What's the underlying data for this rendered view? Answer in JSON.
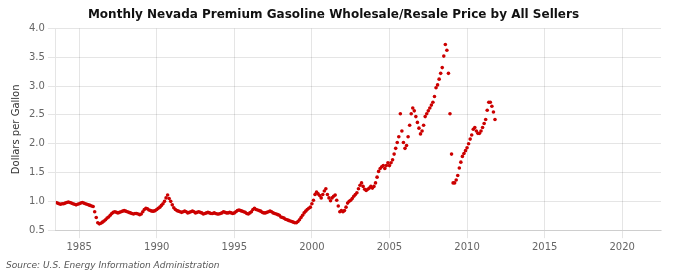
{
  "chart_data": {
    "type": "scatter",
    "title": "Monthly Nevada Premium Gasoline Wholesale/Resale Price by All Sellers",
    "ylabel": "Dollars per Gallon",
    "annotations": [
      "Source: U.S. Energy Information Administration"
    ],
    "color": "#cc0000",
    "grid": true,
    "xlim": [
      1983.5,
      2022.5
    ],
    "ylim": [
      0.5,
      4.0
    ],
    "xticks": [
      1985,
      1990,
      1995,
      2000,
      2005,
      2010,
      2015,
      2020
    ],
    "yticks": [
      0.5,
      {
        "value": 1.0,
        "label": "1.0"
      },
      1.5,
      {
        "value": 2.0,
        "label": "2.0"
      },
      2.5,
      {
        "value": 3.0,
        "label": "3.0"
      },
      3.5,
      {
        "value": 4.0,
        "label": "4.0"
      }
    ],
    "x": [
      1983.5,
      1983.6,
      1983.7,
      1983.8,
      1983.9,
      1984.0,
      1984.1,
      1984.2,
      1984.3,
      1984.4,
      1984.5,
      1984.6,
      1984.7,
      1984.8,
      1984.9,
      1985.0,
      1985.1,
      1985.2,
      1985.3,
      1985.4,
      1985.5,
      1985.6,
      1985.7,
      1985.8,
      1985.9,
      1986.0,
      1986.1,
      1986.2,
      1986.3,
      1986.4,
      1986.5,
      1986.6,
      1986.7,
      1986.8,
      1986.9,
      1987.0,
      1987.1,
      1987.2,
      1987.3,
      1987.4,
      1987.5,
      1987.6,
      1987.7,
      1987.8,
      1987.9,
      1988.0,
      1988.1,
      1988.2,
      1988.3,
      1988.4,
      1988.5,
      1988.6,
      1988.7,
      1988.8,
      1988.9,
      1989.0,
      1989.1,
      1989.2,
      1989.3,
      1989.4,
      1989.5,
      1989.6,
      1989.7,
      1989.8,
      1989.9,
      1990.0,
      1990.1,
      1990.2,
      1990.3,
      1990.4,
      1990.5,
      1990.6,
      1990.7,
      1990.8,
      1990.9,
      1991.0,
      1991.1,
      1991.2,
      1991.3,
      1991.4,
      1991.5,
      1991.6,
      1991.7,
      1991.8,
      1991.9,
      1992.0,
      1992.1,
      1992.2,
      1992.3,
      1992.4,
      1992.5,
      1992.6,
      1992.7,
      1992.8,
      1992.9,
      1993.0,
      1993.1,
      1993.2,
      1993.3,
      1993.4,
      1993.5,
      1993.6,
      1993.7,
      1993.8,
      1993.9,
      1994.0,
      1994.1,
      1994.2,
      1994.3,
      1994.4,
      1994.5,
      1994.6,
      1994.7,
      1994.8,
      1994.9,
      1995.0,
      1995.1,
      1995.2,
      1995.3,
      1995.4,
      1995.5,
      1995.6,
      1995.7,
      1995.8,
      1995.9,
      1996.0,
      1996.1,
      1996.2,
      1996.3,
      1996.4,
      1996.5,
      1996.6,
      1996.7,
      1996.8,
      1996.9,
      1997.0,
      1997.1,
      1997.2,
      1997.3,
      1997.4,
      1997.5,
      1997.6,
      1997.7,
      1997.8,
      1997.9,
      1998.0,
      1998.1,
      1998.2,
      1998.3,
      1998.4,
      1998.5,
      1998.6,
      1998.7,
      1998.8,
      1998.9,
      1999.0,
      1999.1,
      1999.2,
      1999.3,
      1999.4,
      1999.5,
      1999.6,
      1999.7,
      1999.8,
      1999.9,
      2000.0,
      2000.1,
      2000.2,
      2000.3,
      2000.4,
      2000.5,
      2000.6,
      2000.7,
      2000.8,
      2000.9,
      2001.0,
      2001.1,
      2001.2,
      2001.3,
      2001.4,
      2001.5,
      2001.6,
      2001.7,
      2001.8,
      2001.9,
      2002.0,
      2002.1,
      2002.2,
      2002.3,
      2002.4,
      2002.5,
      2002.6,
      2002.7,
      2002.8,
      2002.9,
      2003.0,
      2003.1,
      2003.2,
      2003.3,
      2003.4,
      2003.5,
      2003.6,
      2003.7,
      2003.8,
      2003.9,
      2004.0,
      2004.1,
      2004.2,
      2004.3,
      2004.4,
      2004.5,
      2004.6,
      2004.7,
      2004.8,
      2004.9,
      2005.0,
      2005.1,
      2005.2,
      2005.3,
      2005.4,
      2005.5,
      2005.6,
      2005.7,
      2005.8,
      2005.9,
      2006.0,
      2006.1,
      2006.2,
      2006.3,
      2006.4,
      2006.5,
      2006.6,
      2006.7,
      2006.8,
      2006.9,
      2007.0,
      2007.1,
      2007.2,
      2007.3,
      2007.4,
      2007.5,
      2007.6,
      2007.7,
      2007.8,
      2007.9,
      2008.0,
      2008.1,
      2008.2,
      2008.3,
      2008.4,
      2008.5,
      2008.6,
      2008.7,
      2008.8,
      2008.9,
      2009.0,
      2009.1,
      2009.2,
      2009.3,
      2009.4,
      2009.5,
      2009.6,
      2009.7,
      2009.8,
      2009.9,
      2010.0,
      2010.1,
      2010.2,
      2010.3,
      2010.4,
      2010.5,
      2010.6,
      2010.7,
      2010.8,
      2010.9,
      2011.0,
      2011.1,
      2011.2,
      2011.3,
      2011.4,
      2011.5,
      2011.6,
      2011.7,
      2011.8
    ],
    "values": [
      0.98,
      0.97,
      0.96,
      0.95,
      0.96,
      0.96,
      0.97,
      0.98,
      0.99,
      0.98,
      0.97,
      0.96,
      0.95,
      0.94,
      0.95,
      0.96,
      0.97,
      0.98,
      0.97,
      0.96,
      0.95,
      0.94,
      0.93,
      0.92,
      0.91,
      0.82,
      0.72,
      0.63,
      0.61,
      0.62,
      0.64,
      0.66,
      0.68,
      0.71,
      0.73,
      0.76,
      0.79,
      0.81,
      0.82,
      0.81,
      0.8,
      0.81,
      0.82,
      0.83,
      0.84,
      0.83,
      0.82,
      0.81,
      0.8,
      0.79,
      0.78,
      0.79,
      0.79,
      0.78,
      0.77,
      0.78,
      0.82,
      0.86,
      0.88,
      0.87,
      0.85,
      0.84,
      0.83,
      0.83,
      0.84,
      0.86,
      0.88,
      0.9,
      0.93,
      0.96,
      1.0,
      1.06,
      1.11,
      1.05,
      1.0,
      0.94,
      0.89,
      0.86,
      0.84,
      0.83,
      0.82,
      0.81,
      0.82,
      0.83,
      0.82,
      0.8,
      0.81,
      0.82,
      0.83,
      0.82,
      0.8,
      0.81,
      0.82,
      0.81,
      0.8,
      0.78,
      0.79,
      0.8,
      0.81,
      0.8,
      0.79,
      0.79,
      0.8,
      0.79,
      0.78,
      0.78,
      0.79,
      0.8,
      0.82,
      0.81,
      0.8,
      0.8,
      0.81,
      0.8,
      0.79,
      0.8,
      0.82,
      0.84,
      0.85,
      0.84,
      0.83,
      0.82,
      0.81,
      0.79,
      0.78,
      0.8,
      0.82,
      0.86,
      0.88,
      0.86,
      0.85,
      0.84,
      0.83,
      0.81,
      0.8,
      0.8,
      0.81,
      0.82,
      0.83,
      0.82,
      0.8,
      0.79,
      0.78,
      0.77,
      0.76,
      0.73,
      0.72,
      0.71,
      0.69,
      0.68,
      0.67,
      0.66,
      0.65,
      0.64,
      0.63,
      0.63,
      0.65,
      0.68,
      0.72,
      0.76,
      0.8,
      0.83,
      0.86,
      0.88,
      0.9,
      0.96,
      1.02,
      1.12,
      1.16,
      1.13,
      1.1,
      1.06,
      1.12,
      1.18,
      1.22,
      1.12,
      1.06,
      1.01,
      1.06,
      1.09,
      1.11,
      1.02,
      0.92,
      0.82,
      0.84,
      0.82,
      0.84,
      0.9,
      0.97,
      1.0,
      1.02,
      1.05,
      1.09,
      1.12,
      1.15,
      1.22,
      1.28,
      1.32,
      1.26,
      1.21,
      1.19,
      1.21,
      1.23,
      1.26,
      1.23,
      1.26,
      1.32,
      1.42,
      1.52,
      1.57,
      1.6,
      1.62,
      1.57,
      1.62,
      1.67,
      1.62,
      1.67,
      1.72,
      1.82,
      1.92,
      2.02,
      2.12,
      2.52,
      2.22,
      2.02,
      1.92,
      1.97,
      2.12,
      2.32,
      2.52,
      2.62,
      2.57,
      2.47,
      2.37,
      2.27,
      2.17,
      2.22,
      2.32,
      2.47,
      2.52,
      2.57,
      2.62,
      2.67,
      2.72,
      2.82,
      2.97,
      3.02,
      3.12,
      3.22,
      3.32,
      3.52,
      3.72,
      3.62,
      3.22,
      2.52,
      1.82,
      1.32,
      1.32,
      1.37,
      1.45,
      1.58,
      1.68,
      1.78,
      1.83,
      1.88,
      1.93,
      2.0,
      2.08,
      2.15,
      2.25,
      2.28,
      2.22,
      2.18,
      2.18,
      2.22,
      2.28,
      2.35,
      2.42,
      2.58,
      2.72,
      2.72,
      2.65,
      2.55,
      2.42
    ]
  }
}
